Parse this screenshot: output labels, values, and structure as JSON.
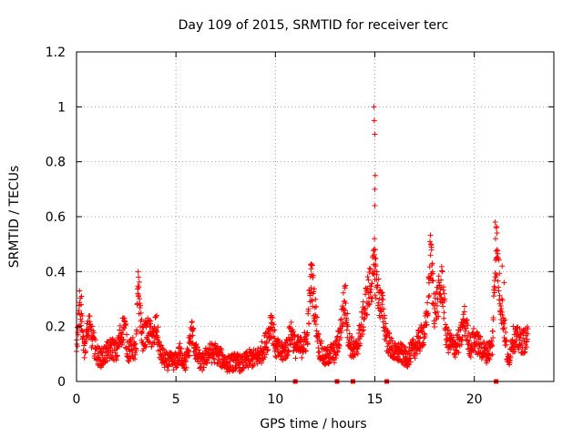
{
  "chart_data": {
    "type": "scatter",
    "title": "Day 109 of 2015, SRMTID for receiver terc",
    "xlabel": "GPS time / hours",
    "ylabel": "SRMTID / TECUs",
    "xlim": [
      0,
      24
    ],
    "ylim": [
      0,
      1.2
    ],
    "x_ticks": [
      0,
      5,
      10,
      15,
      20
    ],
    "x_tick_labels": [
      "0",
      "5",
      "10",
      "15",
      "20"
    ],
    "y_ticks": [
      0,
      0.2,
      0.4,
      0.6,
      0.8,
      1.0,
      1.2
    ],
    "y_tick_labels": [
      "0",
      "0.2",
      "0.4",
      "0.6",
      "0.8",
      "1",
      "1.2"
    ],
    "grid": true,
    "marker": "+",
    "color": "#ff0000",
    "gap_markers_x": [
      11.0,
      13.1,
      13.9,
      15.6,
      21.1
    ],
    "profile": [
      [
        0.0,
        0.15
      ],
      [
        0.2,
        0.25
      ],
      [
        0.4,
        0.12
      ],
      [
        0.6,
        0.2
      ],
      [
        0.8,
        0.15
      ],
      [
        1.0,
        0.1
      ],
      [
        1.2,
        0.08
      ],
      [
        1.5,
        0.1
      ],
      [
        1.8,
        0.12
      ],
      [
        2.0,
        0.1
      ],
      [
        2.2,
        0.16
      ],
      [
        2.4,
        0.2
      ],
      [
        2.6,
        0.1
      ],
      [
        2.8,
        0.12
      ],
      [
        3.0,
        0.1
      ],
      [
        3.1,
        0.35
      ],
      [
        3.2,
        0.25
      ],
      [
        3.3,
        0.15
      ],
      [
        3.6,
        0.18
      ],
      [
        3.9,
        0.15
      ],
      [
        4.0,
        0.2
      ],
      [
        4.2,
        0.1
      ],
      [
        4.5,
        0.07
      ],
      [
        5.0,
        0.07
      ],
      [
        5.2,
        0.1
      ],
      [
        5.5,
        0.06
      ],
      [
        5.8,
        0.18
      ],
      [
        6.0,
        0.1
      ],
      [
        6.3,
        0.06
      ],
      [
        6.6,
        0.1
      ],
      [
        7.0,
        0.1
      ],
      [
        7.3,
        0.08
      ],
      [
        7.6,
        0.06
      ],
      [
        8.0,
        0.07
      ],
      [
        8.3,
        0.06
      ],
      [
        8.7,
        0.08
      ],
      [
        9.0,
        0.08
      ],
      [
        9.3,
        0.1
      ],
      [
        9.6,
        0.15
      ],
      [
        9.8,
        0.22
      ],
      [
        10.0,
        0.12
      ],
      [
        10.3,
        0.1
      ],
      [
        10.6,
        0.12
      ],
      [
        10.8,
        0.18
      ],
      [
        11.0,
        0.12
      ],
      [
        11.3,
        0.12
      ],
      [
        11.6,
        0.15
      ],
      [
        11.8,
        0.38
      ],
      [
        12.0,
        0.25
      ],
      [
        12.2,
        0.12
      ],
      [
        12.5,
        0.08
      ],
      [
        12.8,
        0.1
      ],
      [
        13.0,
        0.1
      ],
      [
        13.2,
        0.15
      ],
      [
        13.5,
        0.3
      ],
      [
        13.7,
        0.14
      ],
      [
        14.0,
        0.1
      ],
      [
        14.2,
        0.15
      ],
      [
        14.4,
        0.22
      ],
      [
        14.6,
        0.3
      ],
      [
        14.8,
        0.35
      ],
      [
        15.0,
        0.4
      ],
      [
        15.2,
        0.3
      ],
      [
        15.4,
        0.25
      ],
      [
        15.6,
        0.15
      ],
      [
        15.8,
        0.12
      ],
      [
        16.0,
        0.1
      ],
      [
        16.3,
        0.1
      ],
      [
        16.6,
        0.08
      ],
      [
        17.0,
        0.12
      ],
      [
        17.3,
        0.15
      ],
      [
        17.6,
        0.2
      ],
      [
        17.8,
        0.45
      ],
      [
        18.0,
        0.25
      ],
      [
        18.2,
        0.3
      ],
      [
        18.4,
        0.35
      ],
      [
        18.6,
        0.15
      ],
      [
        19.0,
        0.12
      ],
      [
        19.3,
        0.15
      ],
      [
        19.5,
        0.22
      ],
      [
        19.8,
        0.12
      ],
      [
        20.0,
        0.15
      ],
      [
        20.3,
        0.12
      ],
      [
        20.6,
        0.1
      ],
      [
        20.9,
        0.12
      ],
      [
        21.1,
        0.5
      ],
      [
        21.3,
        0.3
      ],
      [
        21.5,
        0.2
      ],
      [
        21.7,
        0.06
      ],
      [
        21.9,
        0.15
      ],
      [
        22.1,
        0.15
      ],
      [
        22.4,
        0.14
      ],
      [
        22.7,
        0.15
      ]
    ],
    "peaks": [
      [
        14.95,
        1.0
      ],
      [
        14.97,
        0.95
      ],
      [
        15.0,
        0.9
      ],
      [
        15.02,
        0.75
      ],
      [
        15.0,
        0.7
      ],
      [
        15.0,
        0.64
      ],
      [
        14.98,
        0.52
      ],
      [
        15.02,
        0.48
      ],
      [
        15.0,
        0.45
      ],
      [
        15.05,
        0.42
      ],
      [
        17.82,
        0.5
      ],
      [
        17.85,
        0.48
      ],
      [
        17.8,
        0.46
      ],
      [
        17.9,
        0.4
      ],
      [
        21.05,
        0.58
      ],
      [
        21.1,
        0.56
      ],
      [
        21.07,
        0.52
      ],
      [
        21.15,
        0.48
      ],
      [
        21.12,
        0.45
      ],
      [
        3.1,
        0.4
      ],
      [
        3.12,
        0.38
      ],
      [
        11.8,
        0.41
      ],
      [
        11.82,
        0.39
      ],
      [
        13.5,
        0.34
      ],
      [
        9.8,
        0.24
      ],
      [
        0.15,
        0.33
      ],
      [
        0.25,
        0.31
      ],
      [
        21.4,
        0.42
      ],
      [
        21.5,
        0.36
      ]
    ]
  }
}
